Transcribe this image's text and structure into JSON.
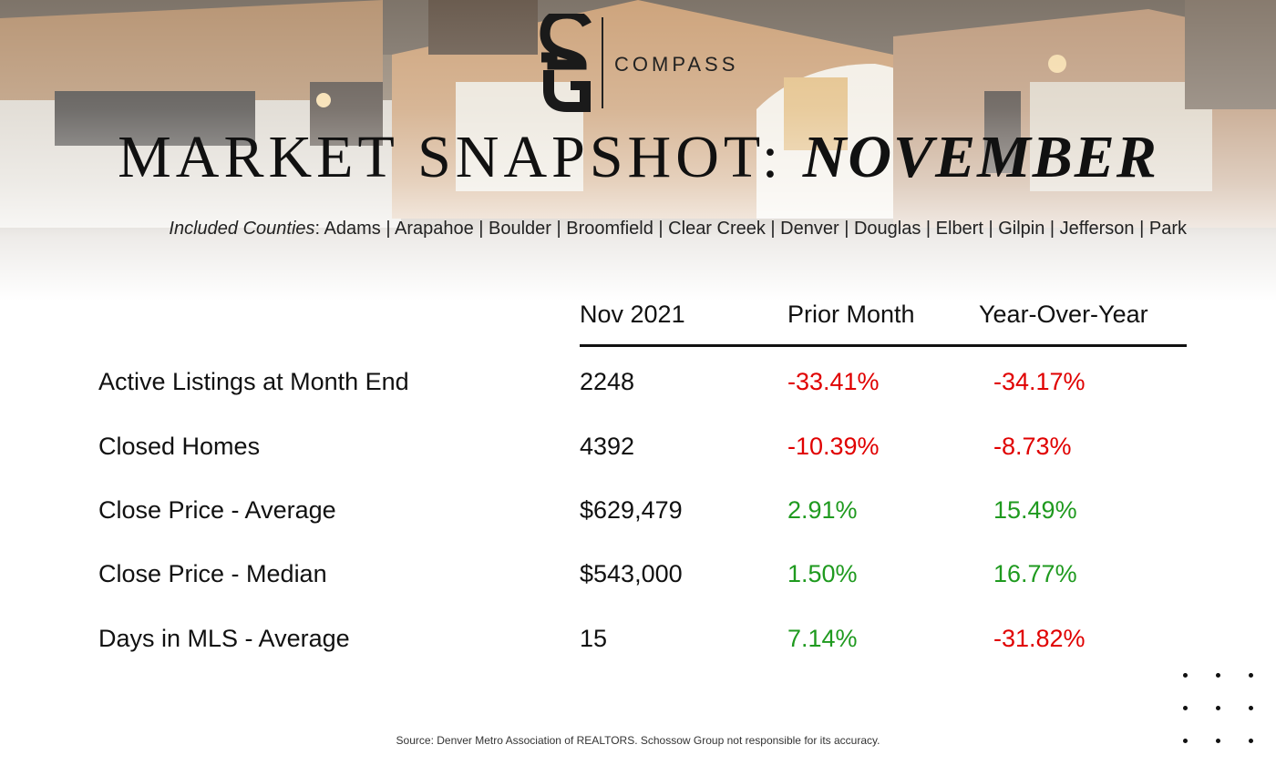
{
  "brand": {
    "monogram": "SG",
    "wordmark": "COMPASS"
  },
  "title": {
    "prefix": "MARKET SNAPSHOT:",
    "month": "NOVEMBER"
  },
  "counties": {
    "label": "Included Counties",
    "list": "Adams | Arapahoe | Boulder | Broomfield | Clear Creek | Denver | Douglas | Elbert | Gilpin | Jefferson | Park"
  },
  "table": {
    "headers": {
      "current": "Nov 2021",
      "prior_month": "Prior Month",
      "year_over_year": "Year-Over-Year"
    },
    "rows": [
      {
        "label": "Active Listings at Month End",
        "value": "2248",
        "prior_month": "-33.41%",
        "year_over_year": "-34.17%"
      },
      {
        "label": "Closed Homes",
        "value": "4392",
        "prior_month": "-10.39%",
        "year_over_year": "-8.73%"
      },
      {
        "label": "Close Price - Average",
        "value": "$629,479",
        "prior_month": "2.91%",
        "year_over_year": "15.49%"
      },
      {
        "label": "Close Price - Median",
        "value": "$543,000",
        "prior_month": "1.50%",
        "year_over_year": "16.77%"
      },
      {
        "label": "Days in MLS - Average",
        "value": "15",
        "prior_month": "7.14%",
        "year_over_year": "-31.82%"
      }
    ]
  },
  "colors": {
    "negative": "#e00000",
    "positive": "#1f9a1f"
  },
  "source": "Source: Denver Metro Association of REALTORS. Schossow Group not responsible for its accuracy."
}
